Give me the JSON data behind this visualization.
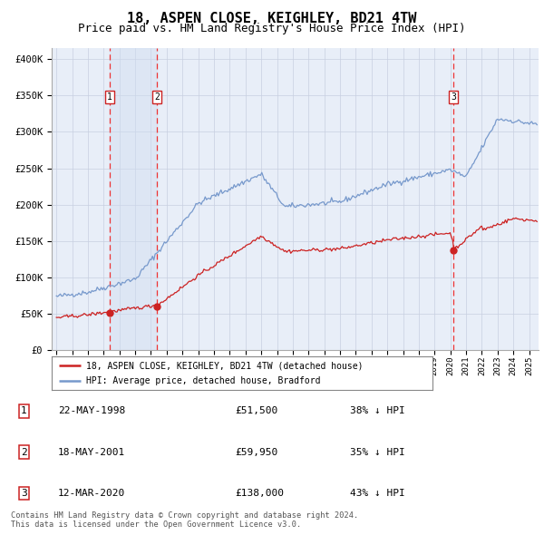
{
  "title": "18, ASPEN CLOSE, KEIGHLEY, BD21 4TW",
  "subtitle": "Price paid vs. HM Land Registry's House Price Index (HPI)",
  "title_fontsize": 11,
  "subtitle_fontsize": 9,
  "ylabel_ticks": [
    "£0",
    "£50K",
    "£100K",
    "£150K",
    "£200K",
    "£250K",
    "£300K",
    "£350K",
    "£400K"
  ],
  "ytick_values": [
    0,
    50000,
    100000,
    150000,
    200000,
    250000,
    300000,
    350000,
    400000
  ],
  "ylim": [
    0,
    415000
  ],
  "xlim_start": 1994.7,
  "xlim_end": 2025.6,
  "background_color": "#ffffff",
  "chart_bg_color": "#e8eef8",
  "grid_color": "#c8cfe0",
  "hpi_line_color": "#7799cc",
  "price_line_color": "#cc2222",
  "sale_dot_color": "#cc2222",
  "dashed_line_color": "#ee3333",
  "highlight_bg_color": "#d0ddf0",
  "sale_events": [
    {
      "label": "1",
      "date_str": "22-MAY-1998",
      "year": 1998.38,
      "price": 51500
    },
    {
      "label": "2",
      "date_str": "18-MAY-2001",
      "year": 2001.38,
      "price": 59950
    },
    {
      "label": "3",
      "date_str": "12-MAR-2020",
      "year": 2020.19,
      "price": 138000
    }
  ],
  "legend_entries": [
    "18, ASPEN CLOSE, KEIGHLEY, BD21 4TW (detached house)",
    "HPI: Average price, detached house, Bradford"
  ],
  "table_rows": [
    {
      "num": "1",
      "date": "22-MAY-1998",
      "price": "£51,500",
      "pct": "38% ↓ HPI"
    },
    {
      "num": "2",
      "date": "18-MAY-2001",
      "price": "£59,950",
      "pct": "35% ↓ HPI"
    },
    {
      "num": "3",
      "date": "12-MAR-2020",
      "price": "£138,000",
      "pct": "43% ↓ HPI"
    }
  ],
  "footnote": "Contains HM Land Registry data © Crown copyright and database right 2024.\nThis data is licensed under the Open Government Licence v3.0."
}
